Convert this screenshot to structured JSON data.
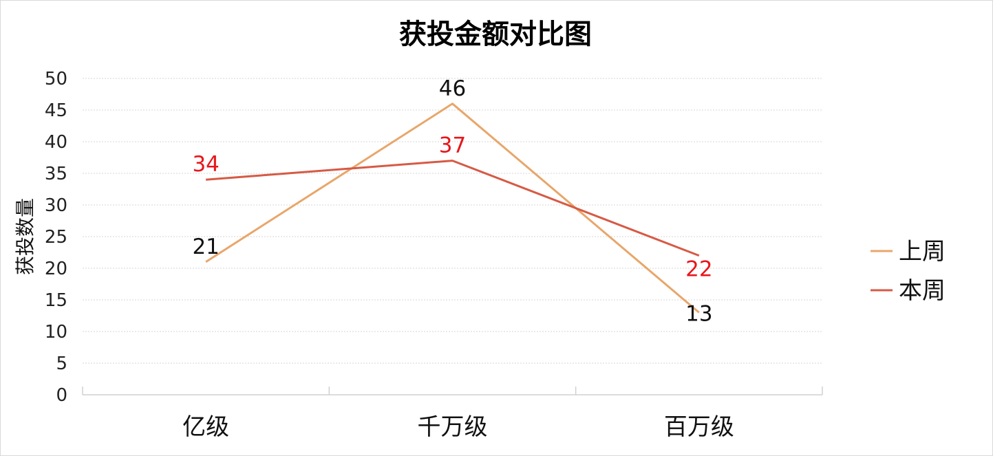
{
  "chart_data": {
    "type": "line",
    "title": "获投金额对比图",
    "xlabel": "",
    "ylabel": "获投数量",
    "categories": [
      "亿级",
      "千万级",
      "百万级"
    ],
    "ylim": [
      0,
      50
    ],
    "yticks": [
      0,
      5,
      10,
      15,
      20,
      25,
      30,
      35,
      40,
      45,
      50
    ],
    "grid": true,
    "legend": "right",
    "series": [
      {
        "name": "上周",
        "values": [
          21,
          46,
          13
        ],
        "color": "#E8A66A",
        "label_color": "#111111"
      },
      {
        "name": "本周",
        "values": [
          34,
          37,
          22
        ],
        "color": "#D65A45",
        "label_color": "#E8161B"
      }
    ]
  }
}
